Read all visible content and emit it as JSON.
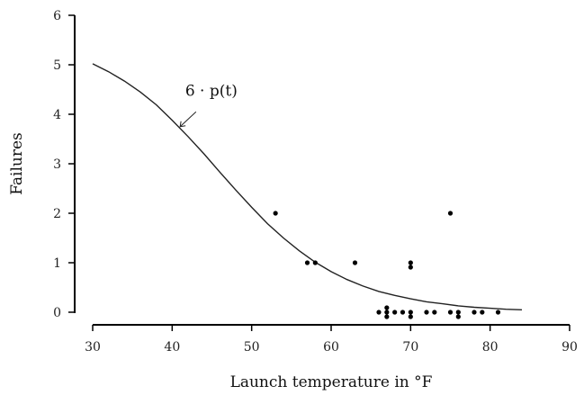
{
  "chart_data": {
    "type": "scatter",
    "xlabel": "Launch temperature in °F",
    "ylabel": "Failures",
    "xlim": [
      30,
      90
    ],
    "ylim": [
      0,
      6
    ],
    "xticks": [
      30,
      40,
      50,
      60,
      70,
      80,
      90
    ],
    "yticks": [
      0,
      1,
      2,
      3,
      4,
      5,
      6
    ],
    "grid": false,
    "legend": "none",
    "points": [
      {
        "x": 53,
        "y": 2
      },
      {
        "x": 57,
        "y": 1
      },
      {
        "x": 58,
        "y": 1
      },
      {
        "x": 63,
        "y": 1
      },
      {
        "x": 66,
        "y": 0
      },
      {
        "x": 67,
        "y": 0
      },
      {
        "x": 67,
        "y": 0
      },
      {
        "x": 67,
        "y": 0
      },
      {
        "x": 68,
        "y": 0
      },
      {
        "x": 69,
        "y": 0
      },
      {
        "x": 70,
        "y": 0
      },
      {
        "x": 70,
        "y": 0
      },
      {
        "x": 70,
        "y": 1
      },
      {
        "x": 70,
        "y": 1
      },
      {
        "x": 72,
        "y": 0
      },
      {
        "x": 73,
        "y": 0
      },
      {
        "x": 75,
        "y": 0
      },
      {
        "x": 75,
        "y": 2
      },
      {
        "x": 76,
        "y": 0
      },
      {
        "x": 76,
        "y": 0
      },
      {
        "x": 78,
        "y": 0
      },
      {
        "x": 79,
        "y": 0
      },
      {
        "x": 81,
        "y": 0
      }
    ],
    "curve": {
      "x": [
        30,
        32,
        34,
        36,
        38,
        40,
        42,
        44,
        46,
        48,
        50,
        52,
        54,
        56,
        58,
        60,
        62,
        64,
        66,
        68,
        70,
        72,
        74,
        76,
        78,
        80,
        82,
        84
      ],
      "y": [
        5.02,
        4.86,
        4.67,
        4.45,
        4.19,
        3.88,
        3.55,
        3.2,
        2.83,
        2.47,
        2.12,
        1.79,
        1.5,
        1.24,
        1.01,
        0.82,
        0.66,
        0.53,
        0.42,
        0.34,
        0.27,
        0.21,
        0.17,
        0.13,
        0.1,
        0.08,
        0.06,
        0.05
      ]
    },
    "annotation": {
      "label": "6 · p(t)",
      "arrow_from": [
        43,
        4.05
      ],
      "arrow_to": [
        41,
        3.75
      ]
    }
  }
}
